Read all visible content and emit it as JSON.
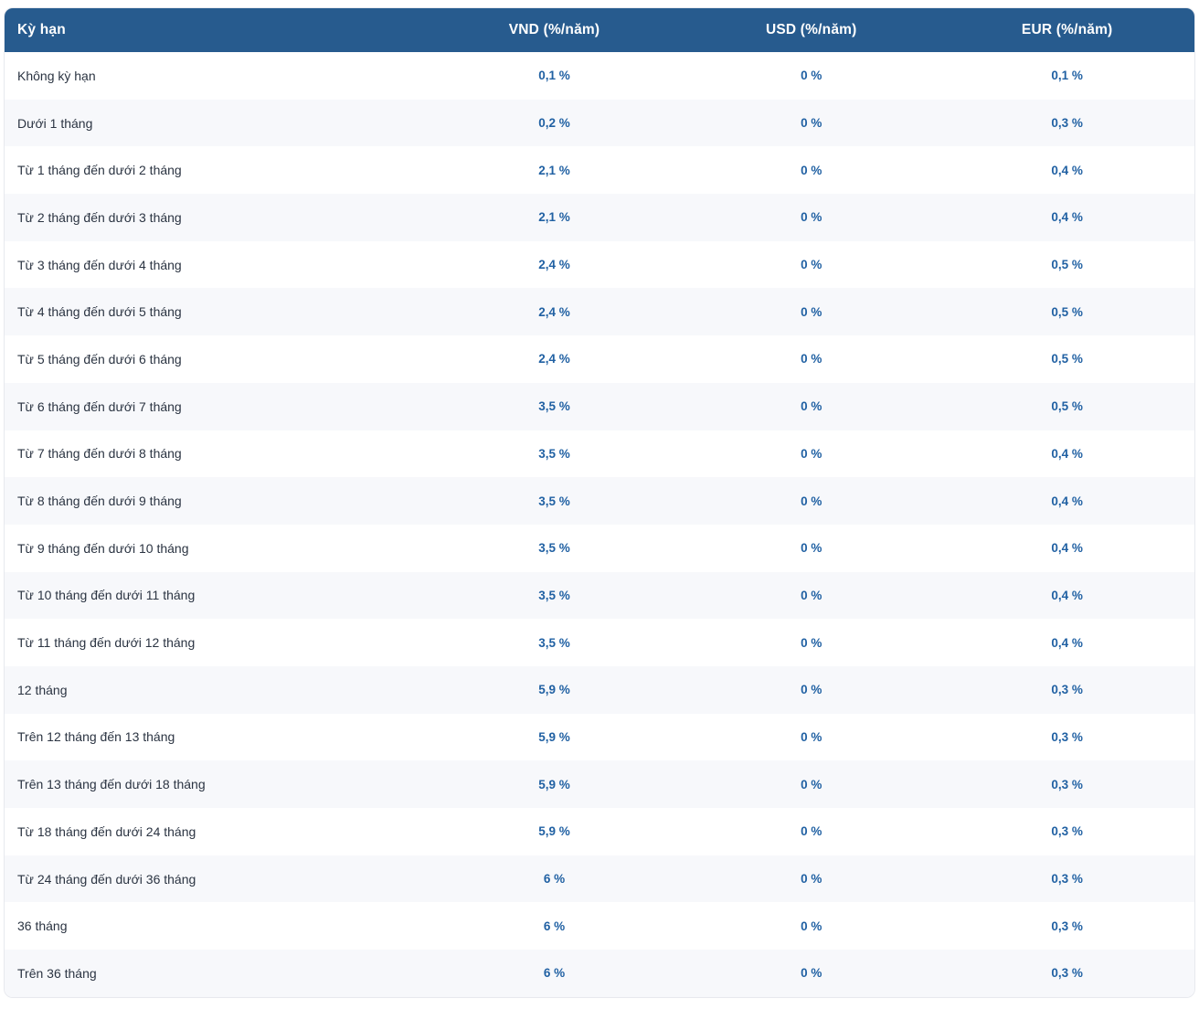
{
  "table": {
    "columns": [
      {
        "key": "term",
        "label": "Kỳ hạn"
      },
      {
        "key": "vnd",
        "label": "VND (%/năm)"
      },
      {
        "key": "usd",
        "label": "USD (%/năm)"
      },
      {
        "key": "eur",
        "label": "EUR (%/năm)"
      }
    ],
    "rows": [
      {
        "term": "Không kỳ hạn",
        "vnd": "0,1 %",
        "usd": "0 %",
        "eur": "0,1 %"
      },
      {
        "term": "Dưới 1 tháng",
        "vnd": "0,2 %",
        "usd": "0 %",
        "eur": "0,3 %"
      },
      {
        "term": "Từ 1 tháng đến dưới 2 tháng",
        "vnd": "2,1 %",
        "usd": "0 %",
        "eur": "0,4 %"
      },
      {
        "term": "Từ 2 tháng đến dưới 3 tháng",
        "vnd": "2,1 %",
        "usd": "0 %",
        "eur": "0,4 %"
      },
      {
        "term": "Từ 3 tháng đến dưới 4 tháng",
        "vnd": "2,4 %",
        "usd": "0 %",
        "eur": "0,5 %"
      },
      {
        "term": "Từ 4 tháng đến dưới 5 tháng",
        "vnd": "2,4 %",
        "usd": "0 %",
        "eur": "0,5 %"
      },
      {
        "term": "Từ 5 tháng đến dưới 6 tháng",
        "vnd": "2,4 %",
        "usd": "0 %",
        "eur": "0,5 %"
      },
      {
        "term": "Từ 6 tháng đến dưới 7 tháng",
        "vnd": "3,5 %",
        "usd": "0 %",
        "eur": "0,5 %"
      },
      {
        "term": "Từ 7 tháng đến dưới 8 tháng",
        "vnd": "3,5 %",
        "usd": "0 %",
        "eur": "0,4 %"
      },
      {
        "term": "Từ 8 tháng đến dưới 9 tháng",
        "vnd": "3,5 %",
        "usd": "0 %",
        "eur": "0,4 %"
      },
      {
        "term": "Từ 9 tháng đến dưới 10 tháng",
        "vnd": "3,5 %",
        "usd": "0 %",
        "eur": "0,4 %"
      },
      {
        "term": "Từ 10 tháng đến dưới 11 tháng",
        "vnd": "3,5 %",
        "usd": "0 %",
        "eur": "0,4 %"
      },
      {
        "term": "Từ 11 tháng đến dưới 12 tháng",
        "vnd": "3,5 %",
        "usd": "0 %",
        "eur": "0,4 %"
      },
      {
        "term": "12 tháng",
        "vnd": "5,9 %",
        "usd": "0 %",
        "eur": "0,3 %"
      },
      {
        "term": "Trên 12 tháng đến 13 tháng",
        "vnd": "5,9 %",
        "usd": "0 %",
        "eur": "0,3 %"
      },
      {
        "term": "Trên 13 tháng đến dưới 18 tháng",
        "vnd": "5,9 %",
        "usd": "0 %",
        "eur": "0,3 %"
      },
      {
        "term": "Từ 18 tháng đến dưới 24 tháng",
        "vnd": "5,9 %",
        "usd": "0 %",
        "eur": "0,3 %"
      },
      {
        "term": "Từ 24 tháng đến dưới 36 tháng",
        "vnd": "6 %",
        "usd": "0 %",
        "eur": "0,3 %"
      },
      {
        "term": "36 tháng",
        "vnd": "6 %",
        "usd": "0 %",
        "eur": "0,3 %"
      },
      {
        "term": "Trên 36 tháng",
        "vnd": "6 %",
        "usd": "0 %",
        "eur": "0,3 %"
      }
    ]
  },
  "colors": {
    "header_bg": "#275b8e",
    "header_text": "#ffffff",
    "term_text": "#2b3442",
    "value_text": "#2161a3",
    "stripe_bg": "#f7f8fb",
    "card_border": "#e7e9ee",
    "page_bg": "#ffffff"
  }
}
